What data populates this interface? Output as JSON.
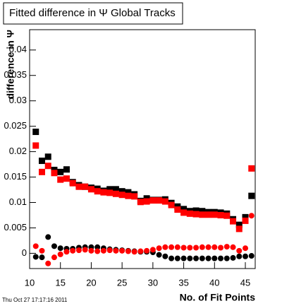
{
  "chart_data": {
    "type": "scatter",
    "title": "Fitted difference in  Ψ   Global Tracks",
    "y_label": "difference in Ψ",
    "x_label": "No. of Fit Points",
    "footer": "Thu Oct 27 17:17:16 2011",
    "x": [
      11,
      12,
      13,
      14,
      15,
      16,
      17,
      18,
      19,
      20,
      21,
      22,
      23,
      24,
      25,
      26,
      27,
      28,
      29,
      30,
      31,
      32,
      33,
      34,
      35,
      36,
      37,
      38,
      39,
      40,
      41,
      42,
      43,
      44,
      45,
      46
    ],
    "series": [
      {
        "color": "#000000",
        "marker": "square",
        "values": [
          0.0239,
          0.0182,
          0.019,
          0.0164,
          0.016,
          0.0165,
          0.014,
          0.0134,
          0.0131,
          0.0129,
          0.0127,
          0.0123,
          0.0126,
          0.0126,
          0.0122,
          0.012,
          0.0116,
          0.0103,
          0.0108,
          0.0105,
          0.0105,
          0.0106,
          0.0099,
          0.0092,
          0.0087,
          0.0083,
          0.0084,
          0.0083,
          0.0081,
          0.0081,
          0.008,
          0.0078,
          0.0067,
          0.0056,
          0.0071,
          0.0113
        ]
      },
      {
        "color": "#ff0000",
        "marker": "square",
        "values": [
          0.0212,
          0.016,
          0.0172,
          0.0158,
          0.0145,
          0.0147,
          0.0138,
          0.0131,
          0.0131,
          0.0126,
          0.0122,
          0.012,
          0.0119,
          0.0117,
          0.0115,
          0.0113,
          0.0112,
          0.0101,
          0.0102,
          0.0104,
          0.0104,
          0.0102,
          0.0095,
          0.0086,
          0.008,
          0.0078,
          0.0077,
          0.0076,
          0.0076,
          0.0076,
          0.0075,
          0.0074,
          0.0063,
          0.0048,
          0.0064,
          0.0167
        ]
      },
      {
        "color": "#000000",
        "marker": "circle",
        "values": [
          -0.0007,
          -0.0008,
          0.0032,
          0.0014,
          0.001,
          0.0009,
          0.0009,
          0.0011,
          0.0012,
          0.0012,
          0.0012,
          0.001,
          0.0008,
          0.0007,
          0.0006,
          0.0005,
          0.0004,
          0.0003,
          0.0003,
          0.0002,
          -0.0003,
          -0.0006,
          -0.001,
          -0.001,
          -0.001,
          -0.001,
          -0.001,
          -0.001,
          -0.001,
          -0.001,
          -0.001,
          -0.001,
          -0.0009,
          -0.0006,
          -0.0006,
          -0.0005
        ]
      },
      {
        "color": "#ff0000",
        "marker": "circle",
        "values": [
          0.0014,
          0.0005,
          -0.002,
          -0.0008,
          -0.0002,
          0.0003,
          0.0005,
          0.0006,
          0.0007,
          0.0005,
          0.0004,
          0.0005,
          0.0006,
          0.0005,
          0.0005,
          0.0004,
          0.0003,
          0.0004,
          0.0005,
          0.0007,
          0.001,
          0.0012,
          0.0012,
          0.0012,
          0.0011,
          0.0011,
          0.0011,
          0.0012,
          0.0012,
          0.0012,
          0.0011,
          0.0013,
          0.0012,
          0.0005,
          0.001,
          0.0074
        ]
      }
    ],
    "xlim": [
      10,
      46.6
    ],
    "xticks": [
      10,
      15,
      20,
      25,
      30,
      35,
      40,
      45
    ],
    "ylim": [
      -0.003,
      0.044
    ],
    "yticks": [
      0,
      0.005,
      0.01,
      0.015,
      0.02,
      0.025,
      0.03,
      0.035,
      0.04
    ]
  }
}
